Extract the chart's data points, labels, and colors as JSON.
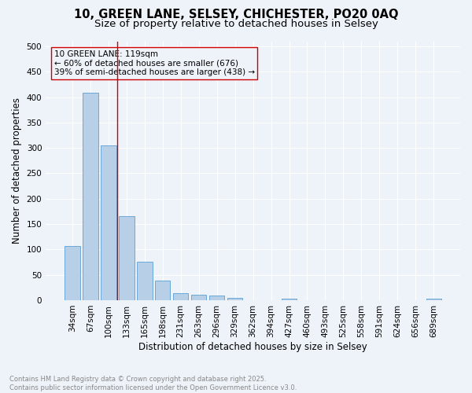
{
  "title_line1": "10, GREEN LANE, SELSEY, CHICHESTER, PO20 0AQ",
  "title_line2": "Size of property relative to detached houses in Selsey",
  "xlabel": "Distribution of detached houses by size in Selsey",
  "ylabel": "Number of detached properties",
  "bar_categories": [
    "34sqm",
    "67sqm",
    "100sqm",
    "133sqm",
    "165sqm",
    "198sqm",
    "231sqm",
    "263sqm",
    "296sqm",
    "329sqm",
    "362sqm",
    "394sqm",
    "427sqm",
    "460sqm",
    "493sqm",
    "525sqm",
    "558sqm",
    "591sqm",
    "624sqm",
    "656sqm",
    "689sqm"
  ],
  "bar_values": [
    106,
    408,
    305,
    166,
    76,
    38,
    14,
    11,
    9,
    5,
    0,
    0,
    3,
    0,
    0,
    0,
    0,
    0,
    0,
    0,
    3
  ],
  "bar_color": "#b8cfe8",
  "bar_edgecolor": "#5a9fd4",
  "vline_x_index": 2.5,
  "vline_color": "#cc0000",
  "annotation_text": "10 GREEN LANE: 119sqm\n← 60% of detached houses are smaller (676)\n39% of semi-detached houses are larger (438) →",
  "annotation_box_edgecolor": "#cc0000",
  "ylim": [
    0,
    510
  ],
  "yticks": [
    0,
    50,
    100,
    150,
    200,
    250,
    300,
    350,
    400,
    450,
    500
  ],
  "background_color": "#eef2f9",
  "footnote_line1": "Contains HM Land Registry data © Crown copyright and database right 2025.",
  "footnote_line2": "Contains public sector information licensed under the Open Government Licence v3.0.",
  "footnote_color": "#888888",
  "title_fontsize": 10.5,
  "subtitle_fontsize": 9.5,
  "axis_label_fontsize": 8.5,
  "tick_fontsize": 7.5,
  "annotation_fontsize": 7.5
}
